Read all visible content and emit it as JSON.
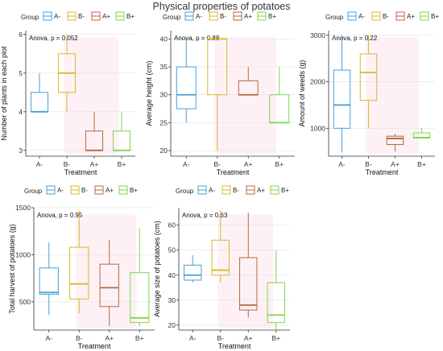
{
  "title": "Physical properties of potatoes",
  "legend": {
    "title": "Group",
    "entries": [
      "A-",
      "B-",
      "A+",
      "B+"
    ]
  },
  "colors": {
    "A-": "#4a9fd6",
    "B-": "#d9b82c",
    "A+": "#b5683c",
    "B+": "#7fd64a",
    "grid": "#e2e2e2",
    "shade": "#fdf1f6"
  },
  "chart_data": [
    {
      "type": "box",
      "ylabel": "Number of plants in each plot",
      "xlabel": "Treatment",
      "annotation": "Anova, p = 0.052",
      "categories": [
        "A-",
        "B-",
        "A+",
        "B+"
      ],
      "ylim": [
        2.85,
        6.1
      ],
      "yticks": [
        3,
        4,
        5,
        6
      ],
      "boxes": [
        {
          "min": 4,
          "q1": 4,
          "median": 4,
          "q3": 4.5,
          "max": 5
        },
        {
          "min": 4,
          "q1": 4.5,
          "median": 5,
          "q3": 5.5,
          "max": 6
        },
        {
          "min": 3,
          "q1": 3,
          "median": 3,
          "q3": 3.5,
          "max": 4
        },
        {
          "min": 3,
          "q1": 3,
          "median": 3,
          "q3": 3.5,
          "max": 4
        }
      ]
    },
    {
      "type": "box",
      "ylabel": "Average height (cm)",
      "xlabel": "Treatment",
      "annotation": "Anova, p = 0.88",
      "categories": [
        "A-",
        "B-",
        "A+",
        "B+"
      ],
      "ylim": [
        19,
        41.5
      ],
      "yticks": [
        20,
        25,
        30,
        35,
        40
      ],
      "boxes": [
        {
          "min": 25,
          "q1": 27.5,
          "median": 30,
          "q3": 35,
          "max": 40
        },
        {
          "min": 20,
          "q1": 30,
          "median": 40,
          "q3": 40,
          "max": 40
        },
        {
          "min": 30,
          "q1": 30,
          "median": 30,
          "q3": 32.5,
          "max": 35
        },
        {
          "min": 25,
          "q1": 25,
          "median": 25,
          "q3": 30,
          "max": 35
        }
      ]
    },
    {
      "type": "box",
      "ylabel": "Amount of weeds (g)",
      "xlabel": "Treatment",
      "annotation": "Anova, p = 0.22",
      "categories": [
        "A-",
        "B-",
        "A+",
        "B+"
      ],
      "ylim": [
        400,
        3100
      ],
      "yticks": [
        1000,
        2000,
        3000
      ],
      "boxes": [
        {
          "min": 480,
          "q1": 1000,
          "median": 1500,
          "q3": 2250,
          "max": 3000
        },
        {
          "min": 1000,
          "q1": 1600,
          "median": 2200,
          "q3": 2600,
          "max": 3000
        },
        {
          "min": 500,
          "q1": 650,
          "median": 780,
          "q3": 830,
          "max": 880
        },
        {
          "min": 780,
          "q1": 790,
          "median": 800,
          "q3": 900,
          "max": 1000
        }
      ]
    },
    {
      "type": "box",
      "ylabel": "Total harvest of potatoes (g)",
      "xlabel": "Treatment",
      "annotation": "Anova, p = 0.95",
      "categories": [
        "A-",
        "B-",
        "A+",
        "B+"
      ],
      "ylim": [
        200,
        1500
      ],
      "yticks": [
        500,
        1000,
        1500
      ],
      "boxes": [
        {
          "min": 360,
          "q1": 580,
          "median": 600,
          "q3": 860,
          "max": 1130
        },
        {
          "min": 380,
          "q1": 530,
          "median": 690,
          "q3": 1080,
          "max": 1470
        },
        {
          "min": 240,
          "q1": 450,
          "median": 650,
          "q3": 900,
          "max": 1160
        },
        {
          "min": 240,
          "q1": 280,
          "median": 330,
          "q3": 810,
          "max": 1280
        }
      ]
    },
    {
      "type": "box",
      "ylabel": "Average size of potatoes (cm)",
      "xlabel": "Treatment",
      "annotation": "Anova, p = 0.63",
      "categories": [
        "A-",
        "B-",
        "A+",
        "B+"
      ],
      "ylim": [
        18,
        67
      ],
      "yticks": [
        20,
        30,
        40,
        50,
        60
      ],
      "boxes": [
        {
          "min": 37,
          "q1": 38,
          "median": 40,
          "q3": 44,
          "max": 48
        },
        {
          "min": 37,
          "q1": 40,
          "median": 42,
          "q3": 54,
          "max": 66
        },
        {
          "min": 23,
          "q1": 26,
          "median": 28,
          "q3": 47,
          "max": 65
        },
        {
          "min": 18,
          "q1": 21,
          "median": 24,
          "q3": 37,
          "max": 50
        }
      ]
    }
  ]
}
